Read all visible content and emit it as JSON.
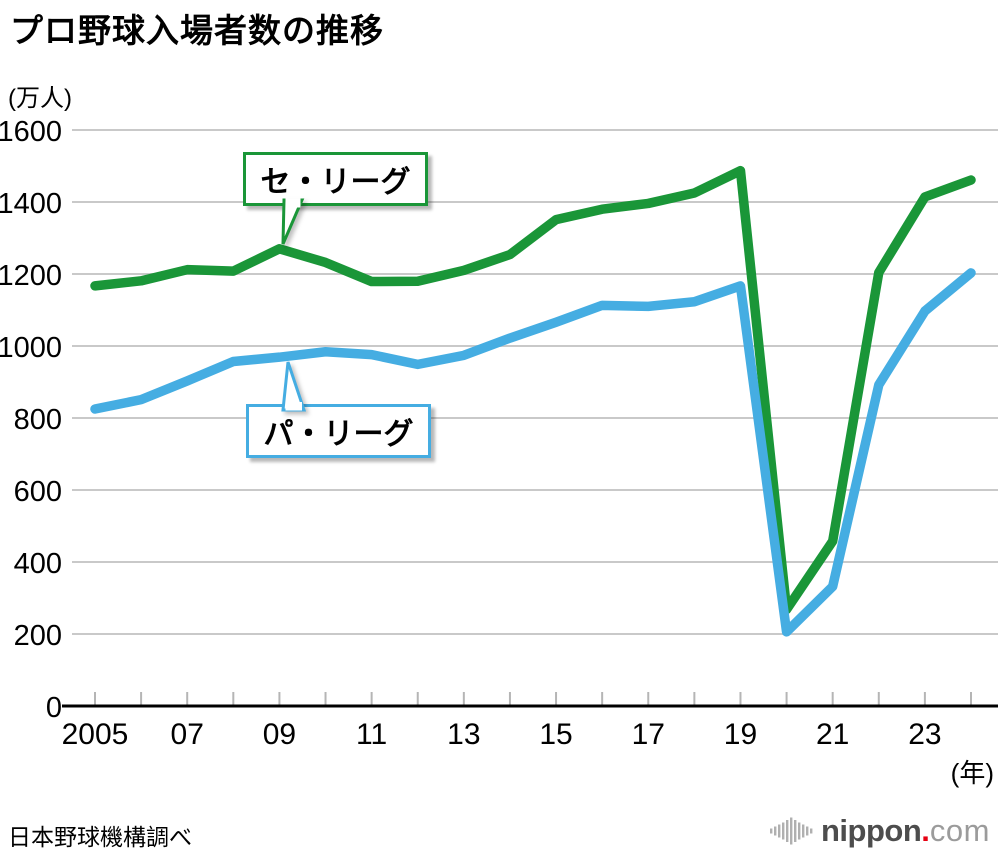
{
  "title": "プロ野球入場者数の推移",
  "y_unit": "(万人)",
  "x_unit": "(年)",
  "source": "日本野球機構調べ",
  "callouts": {
    "central": "セ・リーグ",
    "pacific": "パ・リーグ"
  },
  "logo": {
    "text_main": "nippon",
    "text_dot": ".",
    "text_tld": "com"
  },
  "colors": {
    "central": "#1a9638",
    "pacific": "#45ade2",
    "grid": "#c9c9c9",
    "axis": "#000000",
    "tick": "#b5b5b5",
    "logo_bars": "#b0b0b0",
    "logo_main": "#4d4d4d",
    "logo_dot": "#e60012",
    "logo_tld": "#9b9b9b"
  },
  "chart_data": {
    "type": "line",
    "title": "プロ野球入場者数の推移",
    "ylabel": "(万人)",
    "xlabel": "(年)",
    "grid": true,
    "legend_position": "callouts-on-lines",
    "ylim": [
      0,
      1600
    ],
    "yticks": [
      0,
      200,
      400,
      600,
      800,
      1000,
      1200,
      1400,
      1600
    ],
    "x": [
      2005,
      2006,
      2007,
      2008,
      2009,
      2010,
      2011,
      2012,
      2013,
      2014,
      2015,
      2016,
      2017,
      2018,
      2019,
      2020,
      2021,
      2022,
      2023,
      2024
    ],
    "xtick_label_years": [
      2005,
      2007,
      2009,
      2011,
      2013,
      2015,
      2017,
      2019,
      2021,
      2023
    ],
    "xtick_labels": [
      "2005",
      "07",
      "09",
      "11",
      "13",
      "15",
      "17",
      "19",
      "21",
      "23"
    ],
    "series": [
      {
        "id": "central-league",
        "name": "セ・リーグ",
        "color": "#1a9638",
        "values": [
          1167,
          1181,
          1212,
          1208,
          1270,
          1232,
          1179,
          1180,
          1210,
          1254,
          1351,
          1380,
          1396,
          1425,
          1487,
          268,
          458,
          1204,
          1414,
          1461
        ]
      },
      {
        "id": "pacific-league",
        "name": "パ・リーグ",
        "color": "#45ade2",
        "values": [
          825,
          851,
          903,
          957,
          969,
          984,
          976,
          949,
          974,
          1022,
          1066,
          1113,
          1110,
          1123,
          1167,
          206,
          332,
          892,
          1097,
          1203
        ]
      }
    ]
  }
}
